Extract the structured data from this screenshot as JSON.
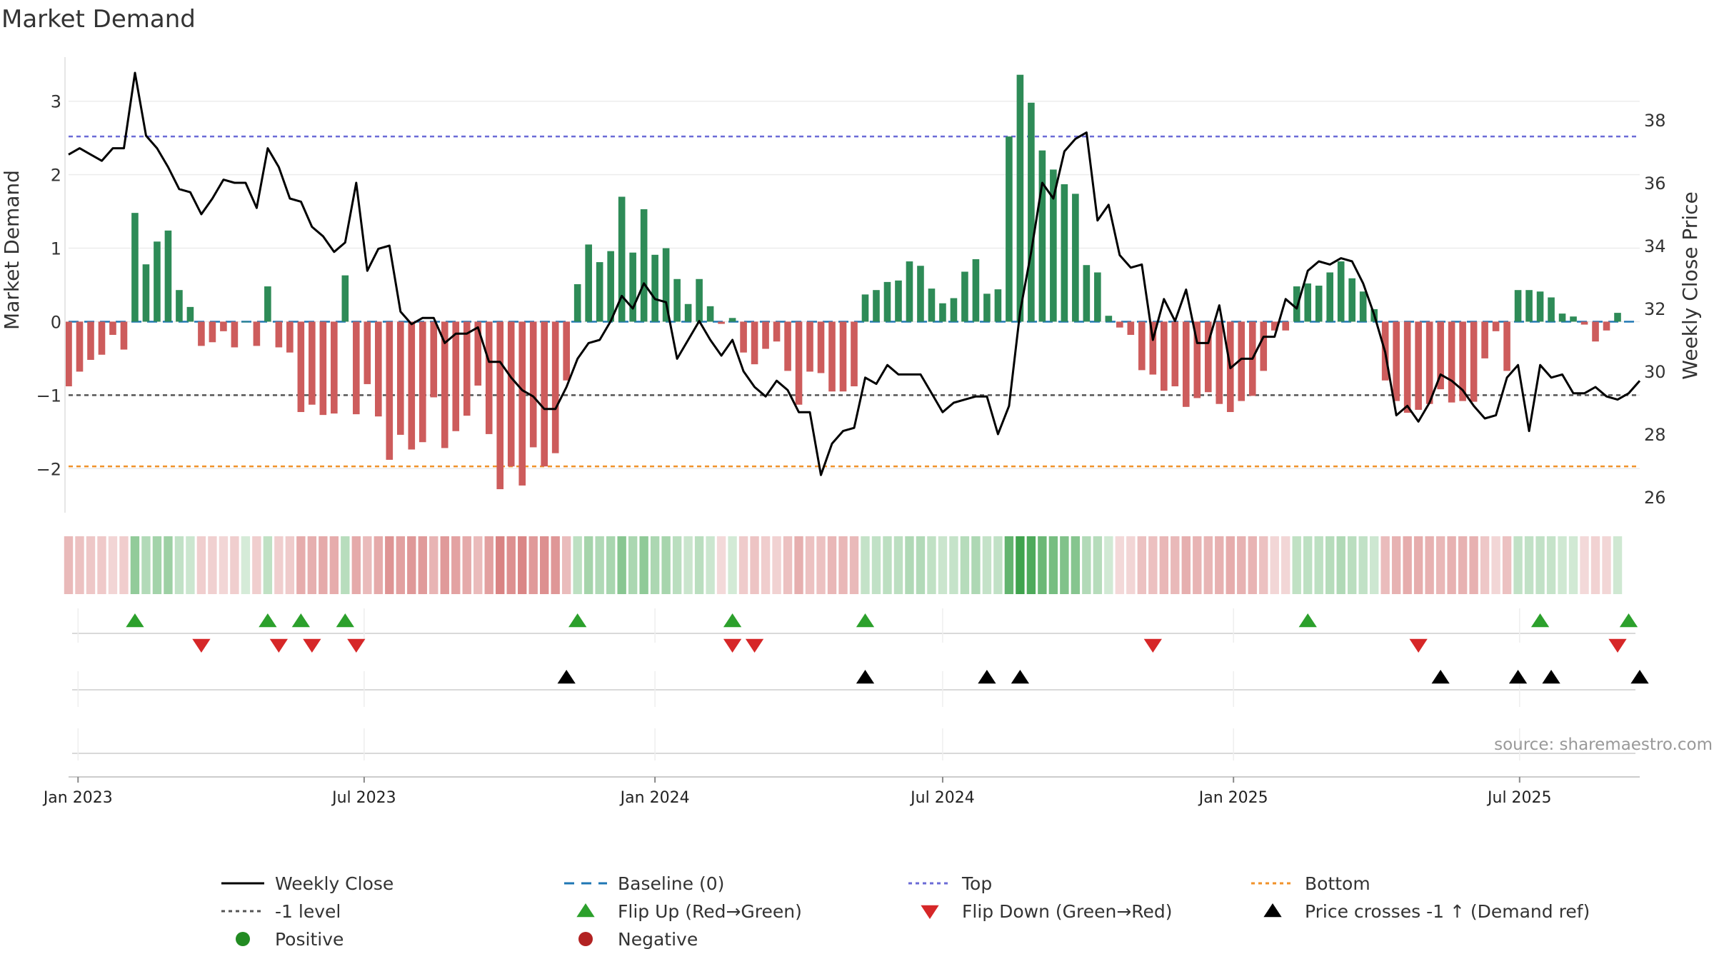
{
  "chart_data": {
    "type": "bar",
    "title": "Market Demand",
    "ylabel": "Market Demand",
    "y2label": "Weekly Close Price",
    "ylim": [
      -2.6,
      3.6
    ],
    "y2lim": [
      25.5,
      40.0
    ],
    "yticks": [
      3,
      2,
      1,
      0,
      -1,
      -2
    ],
    "y2ticks": [
      38,
      36,
      34,
      32,
      30,
      28,
      26
    ],
    "x_start": "2022-12-26",
    "x_end": "2025-09-15",
    "xticks": [
      {
        "label": "Jan 2023",
        "date": "2023-01-01"
      },
      {
        "label": "Jul 2023",
        "date": "2023-07-01"
      },
      {
        "label": "Jan 2024",
        "date": "2024-01-01"
      },
      {
        "label": "Jul 2024",
        "date": "2024-07-01"
      },
      {
        "label": "Jan 2025",
        "date": "2025-01-01"
      },
      {
        "label": "Jul 2025",
        "date": "2025-07-01"
      }
    ],
    "reference_lines": [
      {
        "name": "Top",
        "y": 2.52,
        "color": "#6b6bd6"
      },
      {
        "name": "-1 level",
        "y": -1.0,
        "color": "#555555"
      },
      {
        "name": "Bottom",
        "y": -1.97,
        "color": "#f0922a"
      },
      {
        "name": "Baseline (0)",
        "y": 0,
        "color": "#1f77b4"
      }
    ],
    "first_week": "2022-12-26",
    "demand": [
      -0.88,
      -0.68,
      -0.52,
      -0.45,
      -0.18,
      -0.38,
      1.48,
      0.78,
      1.09,
      1.24,
      0.43,
      0.2,
      -0.33,
      -0.28,
      -0.13,
      -0.35,
      0,
      -0.33,
      0.48,
      -0.35,
      -0.42,
      -1.23,
      -1.13,
      -1.27,
      -1.25,
      0.63,
      -1.26,
      -0.85,
      -1.29,
      -1.88,
      -1.54,
      -1.74,
      -1.64,
      -1.03,
      -1.72,
      -1.49,
      -1.28,
      -0.87,
      -1.53,
      -2.28,
      -1.97,
      -2.23,
      -1.71,
      -1.97,
      -1.79,
      -0.8,
      0.51,
      1.05,
      0.81,
      0.96,
      1.7,
      0.94,
      1.53,
      0.91,
      1.0,
      0.58,
      0.24,
      0.58,
      0.21,
      -0.03,
      0.05,
      -0.42,
      -0.58,
      -0.37,
      -0.27,
      -0.67,
      -1.13,
      -0.68,
      -0.7,
      -0.95,
      -0.95,
      -0.88,
      0.37,
      0.43,
      0.54,
      0.56,
      0.82,
      0.76,
      0.45,
      0.25,
      0.32,
      0.68,
      0.85,
      0.38,
      0.44,
      2.52,
      3.36,
      2.98,
      2.33,
      2.07,
      1.87,
      1.74,
      0.77,
      0.67,
      0.08,
      -0.08,
      -0.18,
      -0.66,
      -0.72,
      -0.94,
      -0.88,
      -1.16,
      -1.04,
      -0.96,
      -1.12,
      -1.23,
      -1.08,
      -1.01,
      -0.67,
      -0.12,
      -0.12,
      0.48,
      0.52,
      0.49,
      0.67,
      0.82,
      0.59,
      0.41,
      0.17,
      -0.8,
      -1.08,
      -1.24,
      -1.2,
      -1.12,
      -0.92,
      -1.1,
      -1.08,
      -1.09,
      -0.5,
      -0.13,
      -0.67,
      0.43,
      0.43,
      0.41,
      0.33,
      0.11,
      0.07,
      -0.04,
      -0.27,
      -0.12,
      0.12
    ],
    "close": [
      36.9,
      37.1,
      36.9,
      36.7,
      37.1,
      37.1,
      39.5,
      37.5,
      37.1,
      36.5,
      35.8,
      35.7,
      35.0,
      35.5,
      36.1,
      36.0,
      36.0,
      35.2,
      37.1,
      36.5,
      35.5,
      35.4,
      34.6,
      34.3,
      33.8,
      34.1,
      36.0,
      33.2,
      33.9,
      34.0,
      31.9,
      31.5,
      31.7,
      31.7,
      30.9,
      31.2,
      31.2,
      31.4,
      30.3,
      30.3,
      29.8,
      29.4,
      29.2,
      28.8,
      28.8,
      29.5,
      30.4,
      30.9,
      31.0,
      31.6,
      32.4,
      32.0,
      32.8,
      32.3,
      32.2,
      30.4,
      31.0,
      31.6,
      31.0,
      30.5,
      31.0,
      30.0,
      29.5,
      29.2,
      29.7,
      29.4,
      28.7,
      28.7,
      26.7,
      27.7,
      28.1,
      28.2,
      29.8,
      29.6,
      30.2,
      29.9,
      29.9,
      29.9,
      29.3,
      28.7,
      29.0,
      29.1,
      29.2,
      29.2,
      28.0,
      28.9,
      31.9,
      33.8,
      36.0,
      35.5,
      37.0,
      37.4,
      37.6,
      34.8,
      35.3,
      33.7,
      33.3,
      33.4,
      31.0,
      32.3,
      31.6,
      32.6,
      30.9,
      30.9,
      32.1,
      30.1,
      30.4,
      30.4,
      31.1,
      31.1,
      32.3,
      32.0,
      33.2,
      33.5,
      33.4,
      33.6,
      33.5,
      32.8,
      31.8,
      30.6,
      28.6,
      28.9,
      28.4,
      29.0,
      29.9,
      29.7,
      29.4,
      28.9,
      28.5,
      28.6,
      29.8,
      30.2,
      28.1,
      30.2,
      29.8,
      29.9,
      29.3,
      29.3,
      29.5,
      29.2,
      29.1,
      29.3,
      29.7
    ],
    "flip_up_weeks": [
      6,
      18,
      21,
      25,
      46,
      60,
      72,
      112,
      133,
      141
    ],
    "flip_down_weeks": [
      12,
      19,
      22,
      26,
      60,
      62,
      98,
      122,
      140
    ],
    "price_cross_weeks": [
      45,
      72,
      83,
      86,
      124,
      131,
      134,
      142
    ],
    "legend": [
      {
        "label": "Weekly Close",
        "marker": "line-solid",
        "color": "#000000"
      },
      {
        "label": "Baseline (0)",
        "marker": "line-dashed",
        "color": "#1f77b4"
      },
      {
        "label": "Top",
        "marker": "line-dotted",
        "color": "#6b6bd6"
      },
      {
        "label": "Bottom",
        "marker": "line-dotted",
        "color": "#f0922a"
      },
      {
        "label": "-1 level",
        "marker": "line-dotted",
        "color": "#555555"
      },
      {
        "label": "Flip Up (Red→Green)",
        "marker": "triangle-up",
        "color": "#2ca02c"
      },
      {
        "label": "Flip Down (Green→Red)",
        "marker": "triangle-down",
        "color": "#d62728"
      },
      {
        "label": "Price crosses -1 ↑ (Demand ref)",
        "marker": "triangle-up",
        "color": "#000000"
      },
      {
        "label": "Positive",
        "marker": "circle",
        "color": "#228b22"
      },
      {
        "label": "Negative",
        "marker": "circle",
        "color": "#b22222"
      }
    ],
    "colors": {
      "positive_bar": "#2e8b57",
      "negative_bar": "#cd5c5c",
      "close_line": "#000000"
    },
    "source": "source: sharemaestro.com"
  }
}
